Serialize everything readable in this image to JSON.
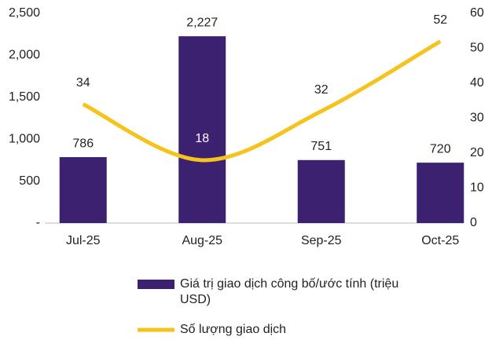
{
  "chart_data": {
    "type": "bar-line",
    "categories": [
      "Jul-25",
      "Aug-25",
      "Sep-25",
      "Oct-25"
    ],
    "series": [
      {
        "name": "Giá trị giao dịch công bố/ước tính (triệu USD)",
        "type": "bar",
        "color": "#3b2170",
        "values": [
          786,
          2227,
          751,
          720
        ],
        "value_labels": [
          "786",
          "2,227",
          "751",
          "720"
        ]
      },
      {
        "name": "Số lượng giao dịch",
        "type": "line",
        "axis": "y2",
        "color": "#f5c31c",
        "values": [
          34,
          18,
          32,
          52
        ]
      }
    ],
    "ylim": [
      0,
      2500
    ],
    "yticks": [
      {
        "value": 0,
        "label": "-"
      },
      500,
      {
        "value": 1000,
        "label": "1,000"
      },
      {
        "value": 1500,
        "label": "1,500"
      },
      {
        "value": 2000,
        "label": "2,000"
      },
      {
        "value": 2500,
        "label": "2,500"
      }
    ],
    "y2lim": [
      0,
      60
    ],
    "y2ticks": [
      0,
      10,
      20,
      30,
      40,
      50,
      60
    ],
    "grid": false
  }
}
